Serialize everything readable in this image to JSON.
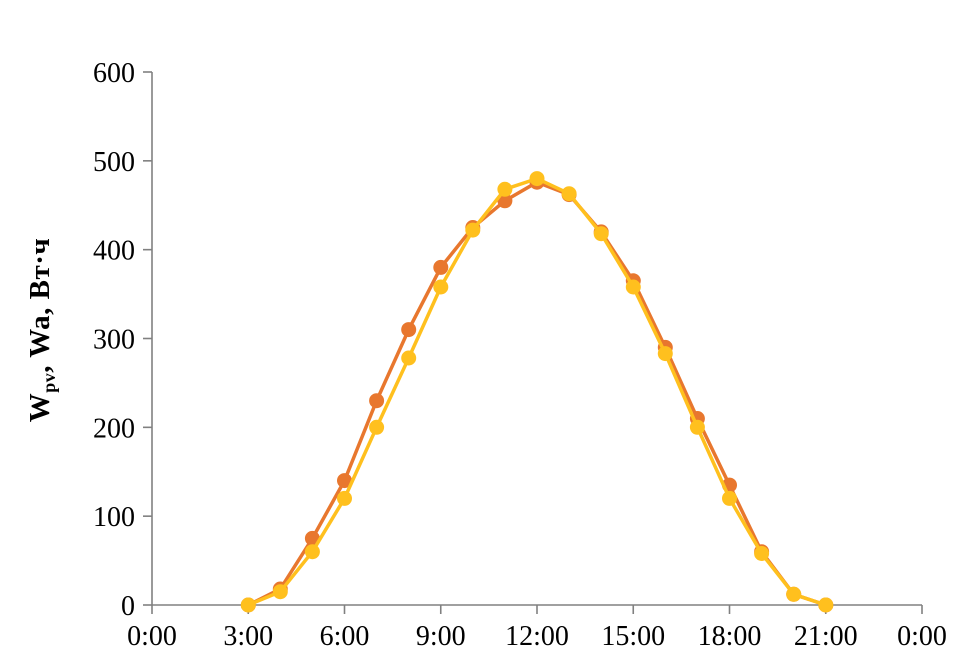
{
  "chart_data": {
    "type": "line",
    "title": "",
    "ylabel_main": "W",
    "ylabel_sub": "pv",
    "ylabel_rest": ", Wa, Вт·ч",
    "xlabel": "",
    "xlim_hours": [
      0,
      24
    ],
    "ylim": [
      0,
      600
    ],
    "y_ticks": [
      0,
      100,
      200,
      300,
      400,
      500,
      600
    ],
    "x_tick_hours": [
      0,
      3,
      6,
      9,
      12,
      15,
      18,
      21,
      24
    ],
    "x_tick_labels": [
      "0:00",
      "3:00",
      "6:00",
      "9:00",
      "12:00",
      "15:00",
      "18:00",
      "21:00",
      "0:00"
    ],
    "grid": false,
    "legend": "none",
    "axis_color": "#808080",
    "text_color": "#000000",
    "series": [
      {
        "name": "Wpv",
        "color": "#E8772E",
        "x_hours": [
          3,
          4,
          5,
          6,
          7,
          8,
          9,
          10,
          11,
          12,
          13,
          14,
          15,
          16,
          17,
          18,
          19,
          20,
          21
        ],
        "values": [
          0,
          18,
          75,
          140,
          230,
          310,
          380,
          425,
          455,
          476,
          462,
          420,
          365,
          290,
          210,
          135,
          60,
          12,
          0
        ]
      },
      {
        "name": "Wa",
        "color": "#FFC01E",
        "x_hours": [
          3,
          4,
          5,
          6,
          7,
          8,
          9,
          10,
          11,
          12,
          13,
          14,
          15,
          16,
          17,
          18,
          19,
          20,
          21
        ],
        "values": [
          0,
          15,
          60,
          120,
          200,
          278,
          358,
          422,
          468,
          480,
          463,
          418,
          358,
          283,
          200,
          120,
          58,
          12,
          0
        ]
      }
    ]
  }
}
